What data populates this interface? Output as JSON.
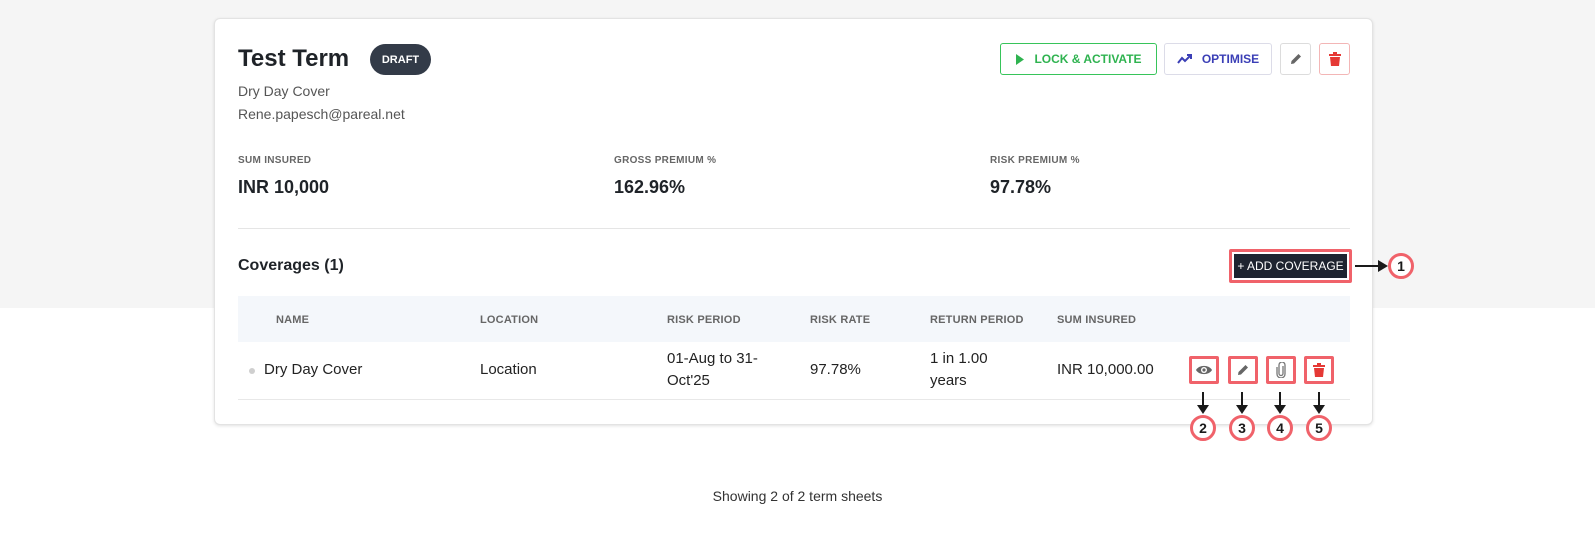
{
  "term": {
    "title": "Test Term",
    "status": "DRAFT",
    "subtitle": "Dry Day Cover",
    "email": "Rene.papesch@pareal.net"
  },
  "actions": {
    "lock_label": "LOCK & ACTIVATE",
    "optimise_label": "OPTIMISE",
    "lock_icon": "play-icon",
    "optimise_icon": "trend-icon",
    "edit_icon": "pencil-icon",
    "delete_icon": "trash-icon"
  },
  "stats": [
    {
      "label": "SUM INSURED",
      "value": "INR 10,000"
    },
    {
      "label": "GROSS PREMIUM %",
      "value": "162.96%"
    },
    {
      "label": "RISK PREMIUM %",
      "value": "97.78%"
    }
  ],
  "coverages": {
    "title": "Coverages (1)",
    "add_label": "+ ADD COVERAGE",
    "columns": [
      "NAME",
      "LOCATION",
      "RISK PERIOD",
      "RISK RATE",
      "RETURN PERIOD",
      "SUM INSURED"
    ],
    "rows": [
      {
        "name": "Dry Day Cover",
        "location": "Location",
        "risk_period": "01-Aug to 31-Oct'25",
        "risk_rate": "97.78%",
        "return_period": "1 in 1.00 years",
        "sum_insured": "INR 10,000.00"
      }
    ],
    "row_actions": [
      "eye-icon",
      "pencil-icon",
      "paperclip-icon",
      "trash-icon"
    ]
  },
  "callouts": [
    "1",
    "2",
    "3",
    "4",
    "5"
  ],
  "colors": {
    "accent_green": "#2fb350",
    "accent_indigo": "#3b3fb6",
    "danger": "#e53935",
    "highlight": "#f0626a",
    "badge_dark": "#333b48"
  },
  "footer": "Showing 2 of 2 term sheets"
}
